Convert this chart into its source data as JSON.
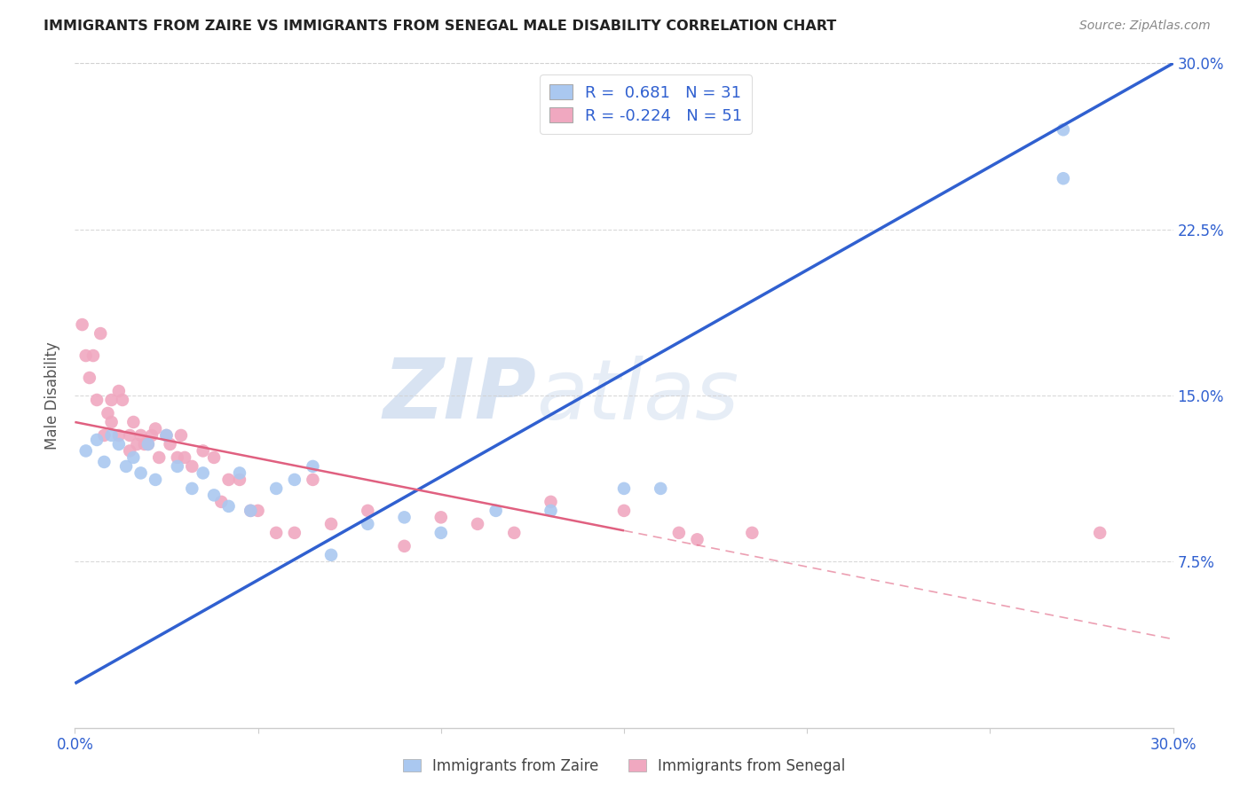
{
  "title": "IMMIGRANTS FROM ZAIRE VS IMMIGRANTS FROM SENEGAL MALE DISABILITY CORRELATION CHART",
  "source": "Source: ZipAtlas.com",
  "ylabel": "Male Disability",
  "xmin": 0.0,
  "xmax": 0.3,
  "ymin": 0.0,
  "ymax": 0.3,
  "ytick_vals": [
    0.075,
    0.15,
    0.225,
    0.3
  ],
  "ytick_labels": [
    "7.5%",
    "15.0%",
    "22.5%",
    "30.0%"
  ],
  "xtick_vals": [
    0.0,
    0.05,
    0.1,
    0.15,
    0.2,
    0.25,
    0.3
  ],
  "xtick_labels": [
    "0.0%",
    "",
    "",
    "",
    "",
    "",
    "30.0%"
  ],
  "watermark_zip": "ZIP",
  "watermark_atlas": "atlas",
  "legend_r1": "R =  0.681   N = 31",
  "legend_r2": "R = -0.224   N = 51",
  "zaire_color": "#aac8f0",
  "senegal_color": "#f0a8c0",
  "zaire_line_color": "#3060d0",
  "senegal_line_color": "#e06080",
  "background_color": "#ffffff",
  "grid_color": "#d0d0d0",
  "zaire_x": [
    0.003,
    0.006,
    0.008,
    0.01,
    0.012,
    0.014,
    0.016,
    0.018,
    0.02,
    0.022,
    0.025,
    0.028,
    0.032,
    0.035,
    0.038,
    0.042,
    0.045,
    0.048,
    0.055,
    0.06,
    0.065,
    0.07,
    0.08,
    0.09,
    0.1,
    0.115,
    0.13,
    0.15,
    0.16,
    0.27,
    0.27
  ],
  "zaire_y": [
    0.125,
    0.13,
    0.12,
    0.132,
    0.128,
    0.118,
    0.122,
    0.115,
    0.128,
    0.112,
    0.132,
    0.118,
    0.108,
    0.115,
    0.105,
    0.1,
    0.115,
    0.098,
    0.108,
    0.112,
    0.118,
    0.078,
    0.092,
    0.095,
    0.088,
    0.098,
    0.098,
    0.108,
    0.108,
    0.27,
    0.248
  ],
  "senegal_x": [
    0.002,
    0.003,
    0.004,
    0.005,
    0.006,
    0.007,
    0.008,
    0.009,
    0.01,
    0.01,
    0.012,
    0.012,
    0.013,
    0.015,
    0.015,
    0.016,
    0.017,
    0.018,
    0.019,
    0.02,
    0.021,
    0.022,
    0.023,
    0.025,
    0.026,
    0.028,
    0.029,
    0.03,
    0.032,
    0.035,
    0.038,
    0.04,
    0.042,
    0.045,
    0.048,
    0.05,
    0.055,
    0.06,
    0.065,
    0.07,
    0.08,
    0.09,
    0.1,
    0.11,
    0.12,
    0.13,
    0.15,
    0.165,
    0.17,
    0.185,
    0.28
  ],
  "senegal_y": [
    0.182,
    0.168,
    0.158,
    0.168,
    0.148,
    0.178,
    0.132,
    0.142,
    0.148,
    0.138,
    0.132,
    0.152,
    0.148,
    0.132,
    0.125,
    0.138,
    0.128,
    0.132,
    0.128,
    0.128,
    0.132,
    0.135,
    0.122,
    0.132,
    0.128,
    0.122,
    0.132,
    0.122,
    0.118,
    0.125,
    0.122,
    0.102,
    0.112,
    0.112,
    0.098,
    0.098,
    0.088,
    0.088,
    0.112,
    0.092,
    0.098,
    0.082,
    0.095,
    0.092,
    0.088,
    0.102,
    0.098,
    0.088,
    0.085,
    0.088,
    0.088
  ],
  "zaire_line_x": [
    0.0,
    0.3
  ],
  "zaire_line_y": [
    0.02,
    0.3
  ],
  "senegal_line_x": [
    0.0,
    0.3
  ],
  "senegal_line_y": [
    0.138,
    0.04
  ]
}
